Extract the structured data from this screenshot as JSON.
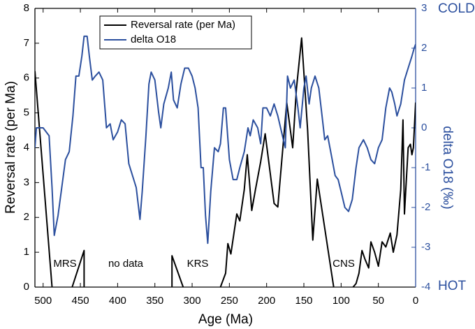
{
  "chart_data": {
    "type": "line",
    "xlabel": "Age (Ma)",
    "ylabel": "Reversal rate (per Ma)",
    "y2label": "delta O18 (‰)",
    "xlim": [
      511,
      0
    ],
    "xticks": [
      500,
      450,
      400,
      350,
      300,
      250,
      200,
      150,
      100,
      50,
      0
    ],
    "ylim": [
      0,
      8
    ],
    "yticks": [
      0,
      1,
      2,
      3,
      4,
      5,
      6,
      7,
      8
    ],
    "y2lim": [
      -4,
      3
    ],
    "y2ticks": [
      -4,
      -3,
      -2,
      -1,
      0,
      1,
      2,
      3
    ],
    "annotations": [
      "MRS",
      "no data",
      "KRS",
      "CNS",
      "COLD",
      "HOT"
    ],
    "legend": "upper left",
    "series": [
      {
        "name": "Reversal rate (per Ma)",
        "color": "#000000",
        "axis": "y",
        "x": [
          511,
          488,
          470,
          461,
          445,
          445,
          400,
          327,
          327,
          312,
          290,
          262,
          255,
          252,
          248,
          240,
          236,
          230,
          226,
          220,
          215,
          208,
          202,
          196,
          190,
          185,
          173,
          165,
          160,
          153,
          145,
          138,
          132,
          110,
          95,
          84,
          80,
          76,
          72,
          68,
          63,
          60,
          55,
          50,
          45,
          40,
          34,
          30,
          25,
          20,
          17,
          15,
          10,
          7,
          5,
          3,
          0
        ],
        "values": [
          6.2,
          0,
          null,
          0,
          1.05,
          0,
          null,
          0,
          0.9,
          0,
          null,
          0,
          0.4,
          1.25,
          0.95,
          2.1,
          1.9,
          2.8,
          3.8,
          2.2,
          2.8,
          3.6,
          4.4,
          3.4,
          2.4,
          2.3,
          5.3,
          4.0,
          5.7,
          7.15,
          4.5,
          1.35,
          3.1,
          0,
          null,
          0,
          0.1,
          0.4,
          1.05,
          0.8,
          0.55,
          1.3,
          1.0,
          0.6,
          1.3,
          1.15,
          1.55,
          1.0,
          1.5,
          2.8,
          4.8,
          2.1,
          4.0,
          4.1,
          3.8,
          4.0,
          5.3
        ]
      },
      {
        "name": "delta O18",
        "color": "#2b4f9e",
        "axis": "y2",
        "x": [
          511,
          509,
          500,
          492,
          488,
          485,
          480,
          475,
          470,
          465,
          460,
          456,
          452,
          448,
          445,
          441,
          438,
          434,
          430,
          425,
          420,
          415,
          410,
          406,
          400,
          395,
          390,
          385,
          380,
          375,
          370,
          367,
          362,
          358,
          355,
          350,
          345,
          342,
          338,
          332,
          328,
          325,
          320,
          315,
          310,
          305,
          300,
          296,
          292,
          288,
          285,
          282,
          279,
          275,
          270,
          265,
          262,
          258,
          255,
          250,
          245,
          240,
          236,
          230,
          225,
          222,
          218,
          212,
          208,
          205,
          200,
          195,
          190,
          185,
          180,
          175,
          172,
          168,
          163,
          158,
          155,
          150,
          147,
          143,
          140,
          135,
          130,
          125,
          122,
          118,
          113,
          108,
          104,
          100,
          95,
          90,
          85,
          80,
          76,
          70,
          65,
          60,
          55,
          50,
          45,
          40,
          35,
          32,
          28,
          25,
          20,
          15,
          10,
          5,
          2,
          0
        ],
        "values": [
          -0.5,
          0.0,
          0.0,
          -0.2,
          -1.5,
          -2.7,
          -2.2,
          -1.5,
          -0.8,
          -0.6,
          0.3,
          1.3,
          1.3,
          1.8,
          2.3,
          2.3,
          1.8,
          1.2,
          1.3,
          1.4,
          1.2,
          0.0,
          0.1,
          -0.3,
          -0.1,
          0.2,
          0.1,
          -0.9,
          -1.2,
          -1.5,
          -2.3,
          -1.6,
          -0.2,
          1.1,
          1.4,
          1.2,
          0.4,
          0.0,
          0.6,
          1.0,
          1.4,
          0.7,
          0.5,
          1.1,
          1.5,
          1.5,
          1.3,
          1.0,
          0.5,
          -1.0,
          -1.0,
          -2.2,
          -2.9,
          -1.6,
          -0.5,
          -0.6,
          -0.4,
          0.5,
          0.5,
          -0.8,
          -1.3,
          -1.3,
          -1.0,
          -0.6,
          0.0,
          -0.2,
          0.2,
          0.0,
          -0.4,
          0.5,
          0.5,
          0.3,
          0.6,
          0.3,
          -0.1,
          -0.5,
          1.3,
          1.0,
          1.2,
          0.5,
          0.0,
          1.0,
          1.3,
          0.6,
          1.0,
          1.3,
          1.0,
          0.2,
          -0.3,
          -0.2,
          -0.7,
          -1.2,
          -1.3,
          -1.6,
          -2.0,
          -2.1,
          -1.8,
          -1.0,
          -0.5,
          -0.3,
          -0.5,
          -0.8,
          -0.9,
          -0.5,
          -0.3,
          0.5,
          1.0,
          0.9,
          0.6,
          0.3,
          0.6,
          1.2,
          1.5,
          1.8,
          2.0,
          2.1
        ]
      }
    ]
  }
}
